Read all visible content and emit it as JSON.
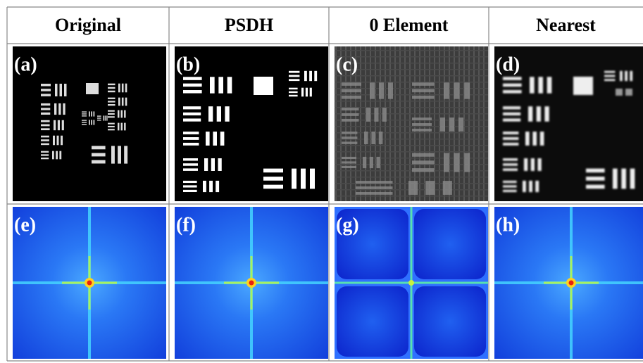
{
  "header": {
    "columns": [
      "Original",
      "PSDH",
      "0 Element",
      "Nearest"
    ]
  },
  "panels": {
    "row1": [
      "(a)",
      "(b)",
      "(c)",
      "(d)"
    ],
    "row2": [
      "(e)",
      "(f)",
      "(g)",
      "(h)"
    ]
  }
}
